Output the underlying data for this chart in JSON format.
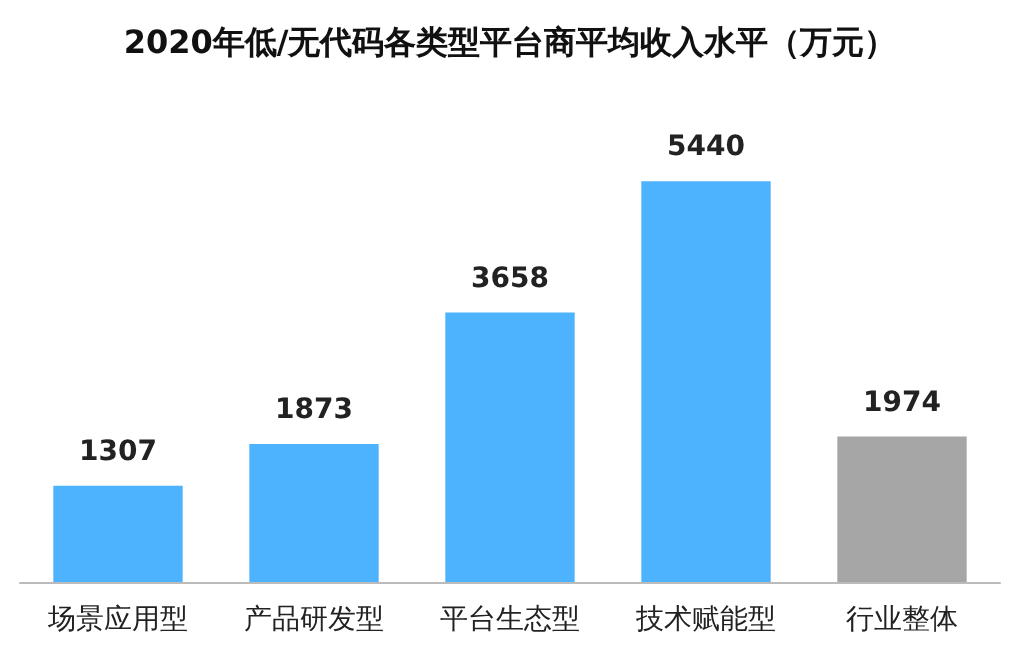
{
  "chart_data": {
    "type": "bar",
    "title": "2020年低/无代码各类型平台商平均收入水平（万元）",
    "categories": [
      "场景应用型",
      "产品研发型",
      "平台生态型",
      "技术赋能型",
      "行业整体"
    ],
    "values": [
      1307,
      1873,
      3658,
      5440,
      1974
    ],
    "colors": [
      "#4db3ff",
      "#4db3ff",
      "#4db3ff",
      "#4db3ff",
      "#a6a6a6"
    ],
    "data_labels": true
  }
}
